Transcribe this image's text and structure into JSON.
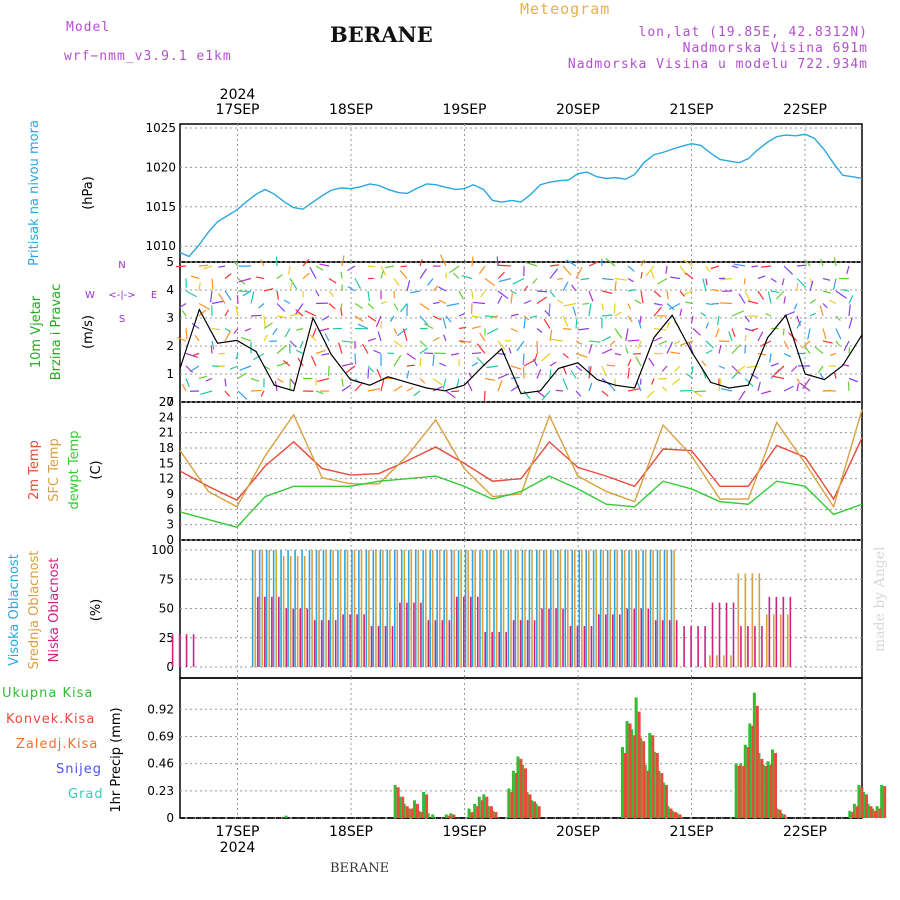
{
  "header": {
    "model_label": "Model",
    "model_name": "wrf−nmm_v3.9.1  e1km",
    "station": "BERANE",
    "meteogram": "Meteogram",
    "lonlat": "lon,lat (19.85E, 42.8312N)",
    "elevation": "Nadmorska Visina 691m",
    "model_elevation": "Nadmorska Visina u modelu 722.934m"
  },
  "footer": {
    "station": "BERANE"
  },
  "watermark": "made by Angel",
  "colors": {
    "pressure": "#2aa7e0",
    "t2m": "#e84a3c",
    "sfc": "#d8a040",
    "dewpt": "#33cc33",
    "high_cloud": "#2aa7e0",
    "mid_cloud": "#d8a040",
    "low_cloud": "#d02080",
    "precip_total": "#33bb33",
    "precip_conv": "#e84a3c",
    "precip_frz": "#f07030",
    "snow": "#5050ee",
    "hail": "#33ccbb",
    "wind_barbs": "#9b30d0"
  },
  "chart_data": [
    {
      "type": "line",
      "panel": "pressure",
      "top_dates": [
        "17SEP",
        "18SEP",
        "19SEP",
        "20SEP",
        "21SEP",
        "22SEP"
      ],
      "top_year": "2024",
      "ylabel_main": "Pritisak na nivou mora",
      "ylabel_unit": "(hPa)",
      "ylim": [
        1008,
        1025.5
      ],
      "yticks": [
        1010,
        1015,
        1020,
        1025
      ],
      "x_days": [
        0.0,
        0.08,
        0.17,
        0.25,
        0.33,
        0.42,
        0.5,
        0.58,
        0.67,
        0.75,
        0.83,
        0.92,
        1.0,
        1.08,
        1.17,
        1.25,
        1.33,
        1.42,
        1.5,
        1.58,
        1.67,
        1.75,
        1.83,
        1.92,
        2.0,
        2.08,
        2.17,
        2.25,
        2.33,
        2.42,
        2.5,
        2.58,
        2.67,
        2.75,
        2.83,
        2.92,
        3.0,
        3.08,
        3.17,
        3.25,
        3.33,
        3.42,
        3.5,
        3.58,
        3.67,
        3.75,
        3.83,
        3.92,
        4.0,
        4.08,
        4.17,
        4.25,
        4.33,
        4.42,
        4.5,
        4.58,
        4.67,
        4.75,
        4.83,
        4.92,
        5.0,
        5.08,
        5.17,
        5.25,
        5.33,
        5.42,
        5.5,
        5.58,
        5.67,
        5.75,
        5.83,
        5.92,
        6.0
      ],
      "series": [
        {
          "name": "pressure",
          "values": [
            1009.2,
            1008.7,
            1010.2,
            1011.8,
            1013.1,
            1013.9,
            1014.6,
            1015.6,
            1016.6,
            1017.2,
            1016.6,
            1015.6,
            1014.9,
            1014.7,
            1015.6,
            1016.4,
            1017.1,
            1017.4,
            1017.3,
            1017.5,
            1017.9,
            1017.7,
            1017.2,
            1016.8,
            1016.7,
            1017.3,
            1017.9,
            1017.8,
            1017.5,
            1017.2,
            1017.3,
            1017.8,
            1017.2,
            1015.8,
            1015.6,
            1015.8,
            1015.6,
            1016.5,
            1017.8,
            1018.1,
            1018.3,
            1018.4,
            1019.2,
            1019.4,
            1018.8,
            1018.6,
            1018.7,
            1018.5,
            1019.1,
            1020.6,
            1021.6,
            1021.9,
            1022.3,
            1022.7,
            1023.0,
            1022.8,
            1021.8,
            1021.0,
            1020.8,
            1020.6,
            1021.1,
            1022.2,
            1023.2,
            1023.9,
            1024.1,
            1024.0,
            1024.2,
            1023.7,
            1022.2,
            1020.5,
            1019.0,
            1018.8,
            1018.6
          ]
        }
      ]
    },
    {
      "type": "scatter",
      "panel": "wind",
      "ylabel_main": "10m Vjetar",
      "ylabel_sub": "Brzina i Pravac",
      "ylabel_unit": "(m/s)",
      "compass": {
        "n": "N",
        "s": "S",
        "w": "W",
        "e": "E",
        "legend": "<-|->"
      },
      "ylim": [
        0,
        5
      ],
      "yticks": [
        0,
        1,
        2,
        3,
        4,
        5
      ],
      "x_days": [
        0.0,
        0.17,
        0.33,
        0.5,
        0.67,
        0.83,
        1.0,
        1.17,
        1.33,
        1.5,
        1.67,
        1.83,
        2.0,
        2.17,
        2.33,
        2.5,
        2.67,
        2.83,
        3.0,
        3.17,
        3.33,
        3.5,
        3.67,
        3.83,
        4.0,
        4.17,
        4.33,
        4.5,
        4.67,
        4.83,
        5.0,
        5.17,
        5.33,
        5.5,
        5.67,
        5.83,
        6.0
      ],
      "series": [
        {
          "name": "wind_speed",
          "values": [
            1.2,
            3.3,
            2.1,
            2.2,
            1.8,
            0.6,
            0.4,
            3.0,
            1.7,
            0.8,
            0.6,
            0.9,
            0.7,
            0.5,
            0.4,
            0.6,
            1.3,
            1.9,
            0.3,
            0.4,
            1.2,
            1.4,
            0.8,
            0.6,
            0.5,
            2.3,
            3.1,
            1.8,
            0.7,
            0.5,
            0.6,
            2.3,
            3.1,
            1.0,
            0.8,
            1.3,
            2.4
          ]
        }
      ]
    },
    {
      "type": "line",
      "panel": "temperature",
      "ylabel_t2m": "2m Temp",
      "ylabel_sfc": "SFC Temp",
      "ylabel_dew": "dewpt Temp",
      "ylabel_unit": "(C)",
      "ylim": [
        0,
        27
      ],
      "yticks": [
        0,
        3,
        6,
        9,
        12,
        15,
        18,
        21,
        24,
        27
      ],
      "x_days": [
        0.0,
        0.25,
        0.5,
        0.75,
        1.0,
        1.25,
        1.5,
        1.75,
        2.0,
        2.25,
        2.5,
        2.75,
        3.0,
        3.25,
        3.5,
        3.75,
        4.0,
        4.25,
        4.5,
        4.75,
        5.0,
        5.25,
        5.5,
        5.75,
        6.0
      ],
      "series": [
        {
          "name": "2m Temp",
          "values": [
            13.5,
            10.5,
            7.8,
            14.5,
            19.2,
            14.0,
            12.7,
            13.0,
            15.5,
            18.2,
            15.0,
            11.5,
            12.0,
            19.2,
            14.2,
            12.5,
            10.5,
            17.8,
            17.5,
            10.5,
            10.5,
            18.5,
            16.2,
            8.0,
            20.0
          ]
        },
        {
          "name": "SFC Temp",
          "values": [
            17.5,
            9.5,
            6.5,
            16.5,
            24.5,
            12.2,
            11.0,
            11.0,
            16.5,
            23.5,
            14.0,
            8.5,
            9.0,
            24.3,
            12.5,
            9.5,
            7.5,
            22.5,
            16.5,
            8.0,
            8.0,
            23.0,
            15.0,
            6.5,
            25.5
          ]
        },
        {
          "name": "dewpt Temp",
          "values": [
            5.5,
            4.0,
            2.5,
            8.5,
            10.5,
            10.5,
            10.5,
            11.5,
            12.0,
            12.5,
            10.5,
            8.0,
            9.5,
            12.5,
            10.0,
            7.0,
            6.5,
            11.5,
            10.0,
            7.5,
            7.0,
            11.5,
            10.5,
            5.0,
            7.0
          ]
        }
      ]
    },
    {
      "type": "bar",
      "panel": "cloud",
      "ylabel_high": "Visoka Oblacnost",
      "ylabel_mid": "Srednja Oblacnost",
      "ylabel_low": "Niska Oblacnost",
      "ylabel_unit": "(%)",
      "ylim": [
        0,
        100
      ],
      "yticks": [
        0,
        25,
        50,
        75,
        100
      ],
      "x_days": [
        0.0,
        0.25,
        0.5,
        0.75,
        1.0,
        1.25,
        1.5,
        1.75,
        2.0,
        2.25,
        2.5,
        2.75,
        3.0,
        3.25,
        3.5,
        3.75,
        4.0,
        4.25,
        4.5,
        4.75,
        5.0,
        5.25,
        5.5,
        5.75,
        6.0
      ],
      "series": [
        {
          "name": "Visoka Oblacnost",
          "values": [
            0,
            0,
            0,
            100,
            100,
            100,
            100,
            100,
            100,
            100,
            100,
            100,
            100,
            100,
            100,
            100,
            100,
            100,
            0,
            0,
            0,
            0,
            0,
            0,
            0
          ]
        },
        {
          "name": "Srednja Oblacnost",
          "values": [
            0,
            0,
            0,
            100,
            95,
            100,
            100,
            100,
            100,
            100,
            100,
            100,
            100,
            100,
            100,
            100,
            100,
            100,
            0,
            10,
            80,
            45,
            0,
            0,
            0
          ]
        },
        {
          "name": "Niska Oblacnost",
          "values": [
            28,
            0,
            0,
            60,
            50,
            40,
            45,
            35,
            55,
            40,
            60,
            30,
            40,
            50,
            35,
            45,
            50,
            40,
            35,
            55,
            35,
            60,
            0,
            0,
            0
          ]
        }
      ]
    },
    {
      "type": "bar",
      "panel": "precip",
      "legend": [
        "Ukupna Kisa",
        "Konvek.Kisa",
        "Zaledj.Kisa",
        "Snijeg",
        "Grad"
      ],
      "ylabel_unit": "1hr Precip (mm)",
      "ylim": [
        0,
        1.1
      ],
      "yticks": [
        0,
        0.23,
        0.46,
        0.69,
        0.92
      ],
      "ytick_labels": [
        "0",
        "0.23",
        "0.46",
        "0.69",
        "0.92"
      ],
      "bottom_dates": [
        "17SEP",
        "18SEP",
        "19SEP",
        "20SEP",
        "21SEP",
        "22SEP"
      ],
      "bottom_year": "2024",
      "x_days": [
        0.04,
        1.0,
        1.04,
        1.08,
        1.12,
        1.17,
        1.21,
        1.25,
        1.29,
        1.33,
        1.45,
        1.49,
        1.65,
        1.7,
        1.74,
        1.78,
        1.82,
        1.86,
        2.0,
        2.04,
        2.08,
        2.12,
        2.16,
        2.2,
        2.24,
        3.0,
        3.04,
        3.08,
        3.12,
        3.16,
        3.2,
        3.24,
        3.28,
        3.32,
        3.36,
        3.4,
        3.44,
        3.48,
        4.0,
        4.04,
        4.08,
        4.12,
        4.16,
        4.2,
        4.24,
        4.28,
        4.32,
        4.36,
        4.4,
        5.0,
        5.04,
        5.08,
        5.12,
        5.16,
        5.2,
        5.24,
        5.28
      ],
      "series": [
        {
          "name": "Ukupna Kisa",
          "values": [
            0.02,
            0.28,
            0.18,
            0.12,
            0.08,
            0.15,
            0.06,
            0.22,
            0.04,
            0.03,
            0.03,
            0.04,
            0.08,
            0.12,
            0.18,
            0.2,
            0.1,
            0.06,
            0.25,
            0.4,
            0.52,
            0.45,
            0.22,
            0.15,
            0.12,
            0.6,
            0.82,
            0.75,
            1.02,
            0.68,
            0.45,
            0.72,
            0.56,
            0.4,
            0.3,
            0.1,
            0.06,
            0.04,
            0.46,
            0.46,
            0.62,
            0.8,
            1.06,
            0.55,
            0.45,
            0.48,
            0.58,
            0.08,
            0.04,
            0.06,
            0.12,
            0.28,
            0.22,
            0.12,
            0.08,
            0.1,
            0.28
          ]
        },
        {
          "name": "Konvek.Kisa",
          "values": [
            0,
            0.26,
            0.18,
            0.1,
            0.08,
            0.12,
            0.05,
            0.2,
            0,
            0,
            0.02,
            0.03,
            0.05,
            0.1,
            0.15,
            0.18,
            0.1,
            0.05,
            0.22,
            0.38,
            0.5,
            0.42,
            0.2,
            0.14,
            0.1,
            0.55,
            0.8,
            0.7,
            0.9,
            0.65,
            0.4,
            0.7,
            0.55,
            0.38,
            0.28,
            0.08,
            0.05,
            0.03,
            0.44,
            0.44,
            0.6,
            0.78,
            0.95,
            0.5,
            0.44,
            0.45,
            0.55,
            0.07,
            0.03,
            0.05,
            0.1,
            0.26,
            0.2,
            0.1,
            0.06,
            0.08,
            0.27
          ]
        }
      ]
    }
  ]
}
